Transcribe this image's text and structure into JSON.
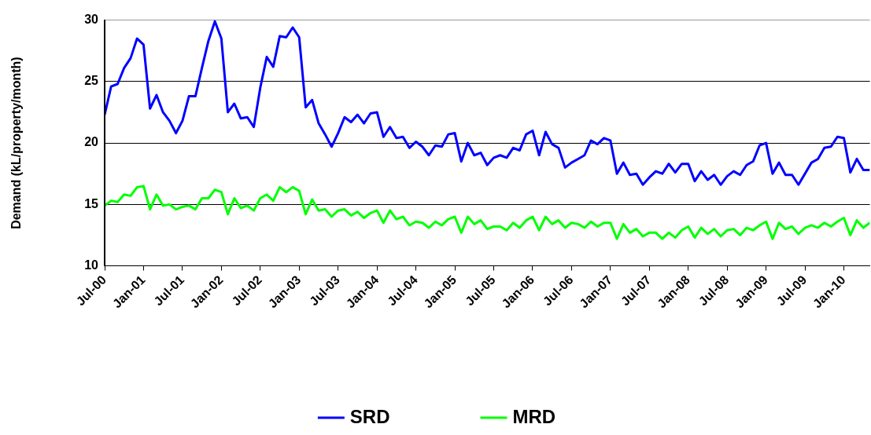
{
  "chart_data": {
    "type": "line",
    "ylabel": "Demand (kL/property/month)",
    "x": [
      "2000-07",
      "2000-08",
      "2000-09",
      "2000-10",
      "2000-11",
      "2000-12",
      "2001-01",
      "2001-02",
      "2001-03",
      "2001-04",
      "2001-05",
      "2001-06",
      "2001-07",
      "2001-08",
      "2001-09",
      "2001-10",
      "2001-11",
      "2001-12",
      "2002-01",
      "2002-02",
      "2002-03",
      "2002-04",
      "2002-05",
      "2002-06",
      "2002-07",
      "2002-08",
      "2002-09",
      "2002-10",
      "2002-11",
      "2002-12",
      "2003-01",
      "2003-02",
      "2003-03",
      "2003-04",
      "2003-05",
      "2003-06",
      "2003-07",
      "2003-08",
      "2003-09",
      "2003-10",
      "2003-11",
      "2003-12",
      "2004-01",
      "2004-02",
      "2004-03",
      "2004-04",
      "2004-05",
      "2004-06",
      "2004-07",
      "2004-08",
      "2004-09",
      "2004-10",
      "2004-11",
      "2004-12",
      "2005-01",
      "2005-02",
      "2005-03",
      "2005-04",
      "2005-05",
      "2005-06",
      "2005-07",
      "2005-08",
      "2005-09",
      "2005-10",
      "2005-11",
      "2005-12",
      "2006-01",
      "2006-02",
      "2006-03",
      "2006-04",
      "2006-05",
      "2006-06",
      "2006-07",
      "2006-08",
      "2006-09",
      "2006-10",
      "2006-11",
      "2006-12",
      "2007-01",
      "2007-02",
      "2007-03",
      "2007-04",
      "2007-05",
      "2007-06",
      "2007-07",
      "2007-08",
      "2007-09",
      "2007-10",
      "2007-11",
      "2007-12",
      "2008-01",
      "2008-02",
      "2008-03",
      "2008-04",
      "2008-05",
      "2008-06",
      "2008-07",
      "2008-08",
      "2008-09",
      "2008-10",
      "2008-11",
      "2008-12",
      "2009-01",
      "2009-02",
      "2009-03",
      "2009-04",
      "2009-05",
      "2009-06",
      "2009-07",
      "2009-08",
      "2009-09",
      "2009-10",
      "2009-11",
      "2009-12",
      "2010-01",
      "2010-02",
      "2010-03",
      "2010-04",
      "2010-05"
    ],
    "series": [
      {
        "name": "SRD",
        "color": "#0000ff",
        "values": [
          22.3,
          24.6,
          24.8,
          26.1,
          26.9,
          28.5,
          28.0,
          22.8,
          23.9,
          22.5,
          21.8,
          20.8,
          21.8,
          23.8,
          23.8,
          26.1,
          28.3,
          29.9,
          28.5,
          22.5,
          23.2,
          22.0,
          22.1,
          21.3,
          24.5,
          27.0,
          26.2,
          28.7,
          28.6,
          29.4,
          28.6,
          22.9,
          23.5,
          21.6,
          20.7,
          19.7,
          20.8,
          22.1,
          21.7,
          22.3,
          21.6,
          22.4,
          22.5,
          20.5,
          21.3,
          20.4,
          20.5,
          19.6,
          20.1,
          19.7,
          19.0,
          19.8,
          19.7,
          20.7,
          20.8,
          18.5,
          20.0,
          19.0,
          19.2,
          18.2,
          18.8,
          19.0,
          18.8,
          19.6,
          19.4,
          20.7,
          21.0,
          19.0,
          20.9,
          19.9,
          19.6,
          18.0,
          18.4,
          18.7,
          19.0,
          20.2,
          19.9,
          20.4,
          20.2,
          17.5,
          18.4,
          17.4,
          17.5,
          16.6,
          17.2,
          17.7,
          17.5,
          18.3,
          17.6,
          18.3,
          18.3,
          16.9,
          17.7,
          17.0,
          17.4,
          16.6,
          17.3,
          17.7,
          17.4,
          18.2,
          18.5,
          19.8,
          20.0,
          17.5,
          18.4,
          17.4,
          17.4,
          16.6,
          17.5,
          18.4,
          18.7,
          19.6,
          19.7,
          20.5,
          20.4,
          17.6,
          18.7,
          17.8,
          17.8
        ]
      },
      {
        "name": "MRD",
        "color": "#00ff00",
        "values": [
          14.9,
          15.3,
          15.2,
          15.8,
          15.7,
          16.4,
          16.5,
          14.6,
          15.8,
          14.9,
          15.0,
          14.6,
          14.8,
          14.9,
          14.6,
          15.5,
          15.5,
          16.2,
          16.0,
          14.2,
          15.5,
          14.7,
          14.9,
          14.5,
          15.5,
          15.8,
          15.3,
          16.4,
          16.0,
          16.4,
          16.1,
          14.2,
          15.4,
          14.5,
          14.6,
          14.0,
          14.5,
          14.6,
          14.1,
          14.4,
          13.9,
          14.3,
          14.5,
          13.5,
          14.5,
          13.8,
          14.0,
          13.3,
          13.6,
          13.5,
          13.1,
          13.6,
          13.3,
          13.8,
          14.0,
          12.7,
          14.0,
          13.4,
          13.7,
          13.0,
          13.2,
          13.2,
          12.9,
          13.5,
          13.1,
          13.7,
          14.0,
          12.9,
          14.0,
          13.4,
          13.7,
          13.1,
          13.5,
          13.4,
          13.1,
          13.6,
          13.2,
          13.5,
          13.5,
          12.2,
          13.4,
          12.7,
          13.0,
          12.4,
          12.7,
          12.7,
          12.2,
          12.7,
          12.3,
          12.9,
          13.2,
          12.3,
          13.1,
          12.6,
          13.0,
          12.4,
          12.9,
          13.0,
          12.5,
          13.1,
          12.9,
          13.3,
          13.6,
          12.2,
          13.5,
          13.0,
          13.2,
          12.6,
          13.1,
          13.3,
          13.1,
          13.5,
          13.2,
          13.6,
          13.9,
          12.5,
          13.7,
          13.1,
          13.5
        ]
      }
    ],
    "xlim": [
      "2000-07",
      "2010-05"
    ],
    "xticks": [
      {
        "value": "2000-07",
        "label": "Jul-00"
      },
      {
        "value": "2001-01",
        "label": "Jan-01"
      },
      {
        "value": "2001-07",
        "label": "Jul-01"
      },
      {
        "value": "2002-01",
        "label": "Jan-02"
      },
      {
        "value": "2002-07",
        "label": "Jul-02"
      },
      {
        "value": "2003-01",
        "label": "Jan-03"
      },
      {
        "value": "2003-07",
        "label": "Jul-03"
      },
      {
        "value": "2004-01",
        "label": "Jan-04"
      },
      {
        "value": "2004-07",
        "label": "Jul-04"
      },
      {
        "value": "2005-01",
        "label": "Jan-05"
      },
      {
        "value": "2005-07",
        "label": "Jul-05"
      },
      {
        "value": "2006-01",
        "label": "Jan-06"
      },
      {
        "value": "2006-07",
        "label": "Jul-06"
      },
      {
        "value": "2007-01",
        "label": "Jan-07"
      },
      {
        "value": "2007-07",
        "label": "Jul-07"
      },
      {
        "value": "2008-01",
        "label": "Jan-08"
      },
      {
        "value": "2008-07",
        "label": "Jul-08"
      },
      {
        "value": "2009-01",
        "label": "Jan-09"
      },
      {
        "value": "2009-07",
        "label": "Jul-09"
      },
      {
        "value": "2010-01",
        "label": "Jan-10"
      }
    ],
    "ylim": [
      10,
      30
    ],
    "yticks": [
      10,
      15,
      20,
      25,
      30
    ],
    "grid": "y",
    "legend": "bottom",
    "marker": "none",
    "line_style": "solid"
  }
}
